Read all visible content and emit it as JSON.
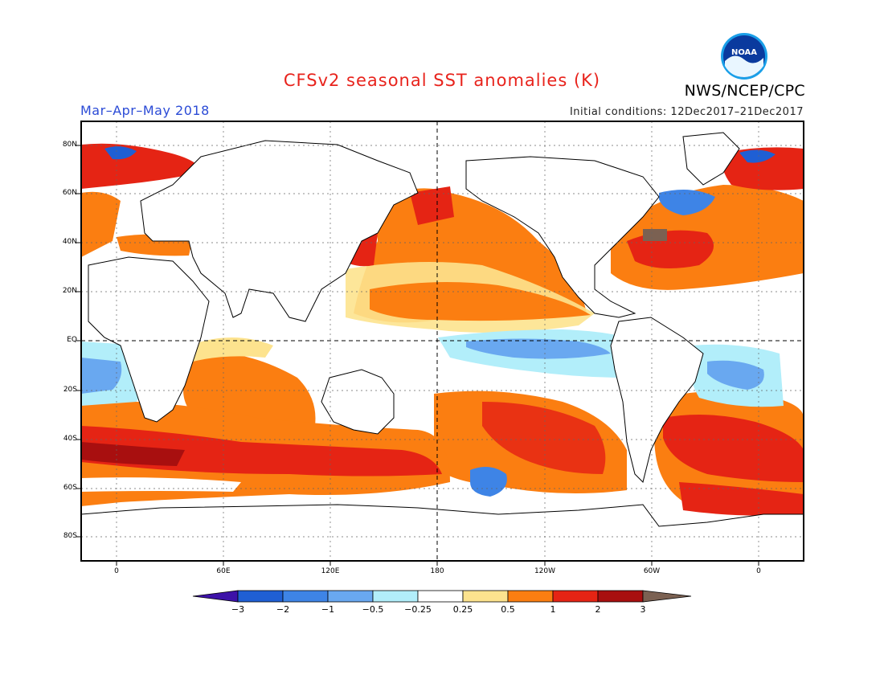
{
  "title": "CFSv2 seasonal SST anomalies (K)",
  "period": "Mar–Apr–May 2018",
  "initial_conditions": "Initial conditions: 12Dec2017–21Dec2017",
  "agency": "NWS/NCEP/CPC",
  "logo_text": "NOAA",
  "lat_labels": [
    "80N",
    "60N",
    "40N",
    "20N",
    "EQ",
    "20S",
    "40S",
    "60S",
    "80S"
  ],
  "lon_labels": [
    "0",
    "60E",
    "120E",
    "180",
    "120W",
    "60W",
    "0"
  ],
  "colorbar": {
    "ticks": [
      "−3",
      "−2",
      "−1",
      "−0.5",
      "−0.25",
      "0.25",
      "0.5",
      "1",
      "2",
      "3"
    ],
    "colors": [
      "#3d12a8",
      "#1f5fd4",
      "#3e84e6",
      "#69a8f0",
      "#b2eefa",
      "#ffffff",
      "#fde38e",
      "#fb7e11",
      "#e52414",
      "#a80f0f",
      "#7b6152"
    ]
  }
}
